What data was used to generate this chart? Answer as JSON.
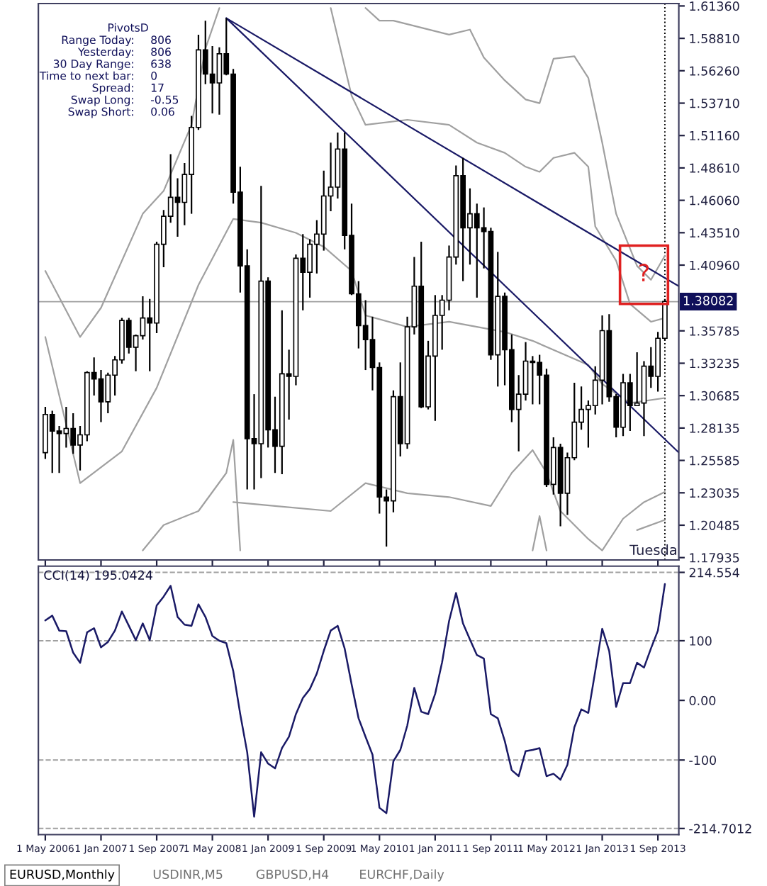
{
  "chart_data": [
    {
      "type": "candlestick",
      "color": "#000000",
      "x": [
        "2006-05",
        "2006-06",
        "2006-07",
        "2006-08",
        "2006-09",
        "2006-10",
        "2006-11",
        "2006-12",
        "2007-01",
        "2007-02",
        "2007-03",
        "2007-04",
        "2007-05",
        "2007-06",
        "2007-07",
        "2007-08",
        "2007-09",
        "2007-10",
        "2007-11",
        "2007-12",
        "2008-01",
        "2008-02",
        "2008-03",
        "2008-04",
        "2008-05",
        "2008-06",
        "2008-07",
        "2008-08",
        "2008-09",
        "2008-10",
        "2008-11",
        "2008-12",
        "2009-01",
        "2009-02",
        "2009-03",
        "2009-04",
        "2009-05",
        "2009-06",
        "2009-07",
        "2009-08",
        "2009-09",
        "2009-10",
        "2009-11",
        "2009-12",
        "2010-01",
        "2010-02",
        "2010-03",
        "2010-04",
        "2010-05",
        "2010-06",
        "2010-07",
        "2010-08",
        "2010-09",
        "2010-10",
        "2010-11",
        "2010-12",
        "2011-01",
        "2011-02",
        "2011-03",
        "2011-04",
        "2011-05",
        "2011-06",
        "2011-07",
        "2011-08",
        "2011-09",
        "2011-10",
        "2011-11",
        "2011-12",
        "2012-01",
        "2012-02",
        "2012-03",
        "2012-04",
        "2012-05",
        "2012-06",
        "2012-07",
        "2012-08",
        "2012-09",
        "2012-10",
        "2012-11",
        "2012-12",
        "2013-01",
        "2013-02",
        "2013-03",
        "2013-04",
        "2013-05",
        "2013-06",
        "2013-07",
        "2013-08",
        "2013-09",
        "2013-10"
      ],
      "ohlc": [
        [
          1.262,
          1.298,
          1.257,
          1.292
        ],
        [
          1.292,
          1.295,
          1.246,
          1.279
        ],
        [
          1.279,
          1.283,
          1.246,
          1.277
        ],
        [
          1.277,
          1.298,
          1.266,
          1.281
        ],
        [
          1.281,
          1.293,
          1.261,
          1.268
        ],
        [
          1.268,
          1.283,
          1.248,
          1.276
        ],
        [
          1.276,
          1.326,
          1.271,
          1.325
        ],
        [
          1.325,
          1.337,
          1.307,
          1.32
        ],
        [
          1.32,
          1.327,
          1.286,
          1.302
        ],
        [
          1.302,
          1.325,
          1.293,
          1.323
        ],
        [
          1.323,
          1.338,
          1.307,
          1.335
        ],
        [
          1.335,
          1.368,
          1.332,
          1.366
        ],
        [
          1.366,
          1.368,
          1.34,
          1.345
        ],
        [
          1.345,
          1.355,
          1.326,
          1.354
        ],
        [
          1.354,
          1.385,
          1.351,
          1.368
        ],
        [
          1.368,
          1.383,
          1.326,
          1.364
        ],
        [
          1.364,
          1.428,
          1.356,
          1.426
        ],
        [
          1.426,
          1.453,
          1.408,
          1.448
        ],
        [
          1.448,
          1.497,
          1.443,
          1.463
        ],
        [
          1.463,
          1.478,
          1.432,
          1.459
        ],
        [
          1.459,
          1.49,
          1.441,
          1.481
        ],
        [
          1.481,
          1.527,
          1.45,
          1.518
        ],
        [
          1.518,
          1.591,
          1.516,
          1.579
        ],
        [
          1.579,
          1.602,
          1.552,
          1.56
        ],
        [
          1.56,
          1.582,
          1.529,
          1.553
        ],
        [
          1.553,
          1.581,
          1.528,
          1.576
        ],
        [
          1.576,
          1.604,
          1.559,
          1.56
        ],
        [
          1.56,
          1.564,
          1.458,
          1.467
        ],
        [
          1.467,
          1.487,
          1.388,
          1.409
        ],
        [
          1.409,
          1.422,
          1.233,
          1.273
        ],
        [
          1.273,
          1.308,
          1.233,
          1.269
        ],
        [
          1.269,
          1.472,
          1.242,
          1.397
        ],
        [
          1.397,
          1.4,
          1.266,
          1.28
        ],
        [
          1.28,
          1.306,
          1.246,
          1.267
        ],
        [
          1.267,
          1.374,
          1.245,
          1.324
        ],
        [
          1.324,
          1.343,
          1.288,
          1.322
        ],
        [
          1.322,
          1.418,
          1.315,
          1.415
        ],
        [
          1.415,
          1.434,
          1.374,
          1.404
        ],
        [
          1.404,
          1.43,
          1.384,
          1.426
        ],
        [
          1.426,
          1.445,
          1.403,
          1.434
        ],
        [
          1.434,
          1.484,
          1.421,
          1.464
        ],
        [
          1.464,
          1.506,
          1.452,
          1.471
        ],
        [
          1.471,
          1.514,
          1.462,
          1.501
        ],
        [
          1.501,
          1.514,
          1.422,
          1.433
        ],
        [
          1.433,
          1.458,
          1.386,
          1.387
        ],
        [
          1.387,
          1.397,
          1.344,
          1.362
        ],
        [
          1.362,
          1.382,
          1.327,
          1.351
        ],
        [
          1.351,
          1.369,
          1.311,
          1.329
        ],
        [
          1.329,
          1.333,
          1.214,
          1.227
        ],
        [
          1.227,
          1.233,
          1.188,
          1.224
        ],
        [
          1.224,
          1.311,
          1.215,
          1.306
        ],
        [
          1.306,
          1.333,
          1.259,
          1.269
        ],
        [
          1.269,
          1.369,
          1.265,
          1.361
        ],
        [
          1.361,
          1.416,
          1.355,
          1.393
        ],
        [
          1.393,
          1.428,
          1.297,
          1.298
        ],
        [
          1.298,
          1.35,
          1.296,
          1.338
        ],
        [
          1.338,
          1.386,
          1.287,
          1.37
        ],
        [
          1.37,
          1.386,
          1.343,
          1.382
        ],
        [
          1.382,
          1.425,
          1.374,
          1.416
        ],
        [
          1.416,
          1.488,
          1.41,
          1.48
        ],
        [
          1.48,
          1.494,
          1.397,
          1.439
        ],
        [
          1.439,
          1.47,
          1.41,
          1.45
        ],
        [
          1.45,
          1.458,
          1.384,
          1.439
        ],
        [
          1.439,
          1.455,
          1.407,
          1.436
        ],
        [
          1.436,
          1.439,
          1.335,
          1.339
        ],
        [
          1.339,
          1.42,
          1.314,
          1.385
        ],
        [
          1.385,
          1.388,
          1.315,
          1.343
        ],
        [
          1.343,
          1.355,
          1.286,
          1.296
        ],
        [
          1.296,
          1.323,
          1.263,
          1.308
        ],
        [
          1.308,
          1.349,
          1.303,
          1.334
        ],
        [
          1.334,
          1.338,
          1.3,
          1.333
        ],
        [
          1.333,
          1.339,
          1.3,
          1.323
        ],
        [
          1.323,
          1.328,
          1.235,
          1.237
        ],
        [
          1.237,
          1.274,
          1.229,
          1.266
        ],
        [
          1.266,
          1.269,
          1.204,
          1.23
        ],
        [
          1.23,
          1.262,
          1.213,
          1.258
        ],
        [
          1.258,
          1.317,
          1.256,
          1.286
        ],
        [
          1.286,
          1.314,
          1.28,
          1.296
        ],
        [
          1.296,
          1.303,
          1.266,
          1.299
        ],
        [
          1.299,
          1.33,
          1.292,
          1.319
        ],
        [
          1.319,
          1.37,
          1.3,
          1.358
        ],
        [
          1.358,
          1.371,
          1.302,
          1.306
        ],
        [
          1.306,
          1.308,
          1.274,
          1.282
        ],
        [
          1.282,
          1.324,
          1.275,
          1.317
        ],
        [
          1.317,
          1.324,
          1.279,
          1.299
        ],
        [
          1.299,
          1.341,
          1.299,
          1.301
        ],
        [
          1.301,
          1.334,
          1.275,
          1.33
        ],
        [
          1.33,
          1.345,
          1.313,
          1.322
        ],
        [
          1.322,
          1.357,
          1.31,
          1.352
        ],
        [
          1.352,
          1.383,
          1.35,
          1.381
        ]
      ],
      "series": [
        {
          "type": "line",
          "color": "#a0a0a0",
          "x": [
            "2006-05",
            "2006-10",
            "2007-01",
            "2007-07",
            "2007-10",
            "2008-02",
            "2008-04",
            "2008-06",
            "2008-07",
            "2009-10",
            "2010-01",
            "2010-03",
            "2010-09",
            "2011-03",
            "2011-07",
            "2011-11",
            "2012-02",
            "2012-04",
            "2012-06",
            "2012-09",
            "2012-11",
            "2012-12",
            "2013-03",
            "2013-05",
            "2013-08",
            "2013-10"
          ],
          "values": [
            1.405,
            1.353,
            1.376,
            1.45,
            1.468,
            1.52,
            1.58,
            1.612,
            null,
            1.612,
            1.543,
            1.52,
            1.524,
            1.52,
            1.506,
            1.498,
            1.487,
            1.483,
            1.494,
            1.498,
            1.487,
            1.44,
            1.413,
            1.379,
            1.365,
            1.368
          ]
        },
        {
          "type": "line",
          "color": "#a0a0a0",
          "x": [
            "2010-03",
            "2010-05",
            "2010-07",
            "2011-03",
            "2011-06",
            "2011-08",
            "2011-11",
            "2012-02",
            "2012-04",
            "2012-06",
            "2012-09",
            "2012-11",
            "2013-01",
            "2013-03",
            "2013-06",
            "2013-08",
            "2013-10"
          ],
          "values": [
            1.612,
            1.602,
            1.602,
            1.591,
            1.595,
            1.573,
            1.555,
            1.54,
            1.537,
            1.572,
            1.574,
            1.557,
            1.506,
            1.45,
            1.409,
            1.398,
            1.417
          ]
        },
        {
          "type": "line",
          "color": "#a0a0a0",
          "x": [
            "2006-05",
            "2006-10",
            "2007-04",
            "2007-09",
            "2008-03",
            "2008-08",
            "2008-12",
            "2009-05",
            "2009-09",
            "2010-01",
            "2010-03",
            "2010-09",
            "2011-03",
            "2011-07",
            "2011-11",
            "2012-03",
            "2012-11",
            "2013-01",
            "2013-05",
            "2013-10"
          ],
          "values": [
            1.353,
            1.238,
            1.263,
            1.313,
            1.394,
            1.446,
            1.443,
            1.435,
            1.424,
            1.405,
            1.37,
            1.361,
            1.365,
            1.361,
            1.357,
            1.35,
            1.331,
            1.316,
            1.301,
            1.305
          ]
        },
        {
          "type": "line",
          "color": "#a0a0a0",
          "x": [
            "2008-08",
            "2009-02",
            "2009-10",
            "2010-03",
            "2010-09",
            "2011-03",
            "2011-09",
            "2011-12",
            "2012-03",
            "2012-05",
            "2012-07",
            "2012-11",
            "2013-01",
            "2013-04",
            "2013-07",
            "2013-10"
          ],
          "values": [
            1.223,
            1.22,
            1.216,
            1.238,
            1.23,
            1.227,
            1.22,
            1.246,
            1.264,
            1.246,
            1.216,
            1.194,
            1.185,
            1.21,
            1.223,
            1.231
          ]
        },
        {
          "type": "line",
          "color": "#a0a0a0",
          "x": [
            "2007-07",
            "2007-10",
            "2008-03",
            "2008-07",
            "2008-08",
            "2008-09",
            "2008-10",
            "2012-03",
            "2012-04",
            "2012-05",
            "2012-06",
            "2013-06",
            "2013-10"
          ],
          "values": [
            1.185,
            1.205,
            1.216,
            1.246,
            1.272,
            1.185,
            null,
            1.185,
            1.212,
            1.185,
            null,
            1.201,
            1.209
          ]
        },
        {
          "type": "line",
          "color": "#1a1a66",
          "x": [
            "2008-07",
            "2013-12"
          ],
          "values": [
            1.604,
            1.393
          ]
        },
        {
          "type": "line",
          "color": "#1a1a66",
          "x": [
            "2008-07",
            "2013-12"
          ],
          "values": [
            1.604,
            1.262
          ]
        }
      ],
      "xlim": [
        "2006-04",
        "2013-12"
      ],
      "ylim": [
        1.1775,
        1.6155
      ],
      "xticks": [
        {
          "value": "2006-05",
          "label": null
        },
        {
          "value": "2007-01",
          "label": null
        },
        {
          "value": "2007-09",
          "label": null
        },
        {
          "value": "2008-05",
          "label": null
        },
        {
          "value": "2009-01",
          "label": null
        },
        {
          "value": "2009-09",
          "label": null
        },
        {
          "value": "2010-05",
          "label": null
        },
        {
          "value": "2011-01",
          "label": null
        },
        {
          "value": "2011-09",
          "label": null
        },
        {
          "value": "2012-05",
          "label": null
        },
        {
          "value": "2013-01",
          "label": null
        },
        {
          "value": "2013-09",
          "label": null
        }
      ],
      "yticks": [
        {
          "value": 1.6136,
          "label": "1.61360"
        },
        {
          "value": 1.5881,
          "label": "1.58810"
        },
        {
          "value": 1.5626,
          "label": "1.56260"
        },
        {
          "value": 1.5371,
          "label": "1.53710"
        },
        {
          "value": 1.5116,
          "label": "1.51160"
        },
        {
          "value": 1.4861,
          "label": "1.48610"
        },
        {
          "value": 1.4606,
          "label": "1.46060"
        },
        {
          "value": 1.4351,
          "label": "1.43510"
        },
        {
          "value": 1.4096,
          "label": "1.40960"
        },
        {
          "value": 1.35785,
          "label": "1.35785"
        },
        {
          "value": 1.33235,
          "label": "1.33235"
        },
        {
          "value": 1.30685,
          "label": "1.30685"
        },
        {
          "value": 1.28135,
          "label": "1.28135"
        },
        {
          "value": 1.25585,
          "label": "1.25585"
        },
        {
          "value": 1.23035,
          "label": "1.23035"
        },
        {
          "value": 1.20485,
          "label": "1.20485"
        },
        {
          "value": 1.17935,
          "label": "1.17935"
        }
      ],
      "tick_labels": "y",
      "ref_lines": [
        {
          "axis": "y",
          "value": 1.38082,
          "label": "1.38082",
          "color": "#a0a0a0",
          "line_style": "solid"
        },
        {
          "axis": "x",
          "value": "2013-10",
          "color": "#000000",
          "line_style": "dotted"
        }
      ],
      "annotations": [
        "PivotsD",
        "Range Today:",
        "806",
        "Yesterday:",
        "806",
        "30 Day Range:",
        "638",
        "Time to next bar:",
        "0",
        "Spread:",
        "17",
        "Swap Long:",
        "-0.55",
        "Swap Short:",
        "0.06",
        {
          "text": "?",
          "x": "2013-07",
          "y": 1.402
        },
        "Tuesda"
      ]
    },
    {
      "type": "line",
      "title": "CCI(14) 195.0424",
      "x": [
        "2006-05",
        "2006-06",
        "2006-07",
        "2006-08",
        "2006-09",
        "2006-10",
        "2006-11",
        "2006-12",
        "2007-01",
        "2007-02",
        "2007-03",
        "2007-04",
        "2007-05",
        "2007-06",
        "2007-07",
        "2007-08",
        "2007-09",
        "2007-10",
        "2007-11",
        "2007-12",
        "2008-01",
        "2008-02",
        "2008-03",
        "2008-04",
        "2008-05",
        "2008-06",
        "2008-07",
        "2008-08",
        "2008-09",
        "2008-10",
        "2008-11",
        "2008-12",
        "2009-01",
        "2009-02",
        "2009-03",
        "2009-04",
        "2009-05",
        "2009-06",
        "2009-07",
        "2009-08",
        "2009-09",
        "2009-10",
        "2009-11",
        "2009-12",
        "2010-01",
        "2010-02",
        "2010-03",
        "2010-04",
        "2010-05",
        "2010-06",
        "2010-07",
        "2010-08",
        "2010-09",
        "2010-10",
        "2010-11",
        "2010-12",
        "2011-01",
        "2011-02",
        "2011-03",
        "2011-04",
        "2011-05",
        "2011-06",
        "2011-07",
        "2011-08",
        "2011-09",
        "2011-10",
        "2011-11",
        "2011-12",
        "2012-01",
        "2012-02",
        "2012-03",
        "2012-04",
        "2012-05",
        "2012-06",
        "2012-07",
        "2012-08",
        "2012-09",
        "2012-10",
        "2012-11",
        "2012-12",
        "2013-01",
        "2013-02",
        "2013-03",
        "2013-04",
        "2013-05",
        "2013-06",
        "2013-07",
        "2013-08",
        "2013-09",
        "2013-10"
      ],
      "series": [
        {
          "color": "#1a1a66",
          "values": [
            134,
            142,
            117,
            116,
            80,
            63,
            114,
            121,
            89,
            98,
            117,
            149,
            125,
            101,
            129,
            101,
            159,
            174,
            192,
            140,
            127,
            125,
            161,
            140,
            108,
            100,
            96,
            49,
            -23,
            -87,
            -195,
            -87,
            -106,
            -114,
            -80,
            -61,
            -23,
            4,
            19,
            45,
            83,
            117,
            125,
            87,
            27,
            -30,
            -61,
            -91,
            -180,
            -189,
            -102,
            -83,
            -42,
            21,
            -19,
            -23,
            11,
            64,
            133,
            180,
            129,
            102,
            76,
            70,
            -23,
            -30,
            -68,
            -117,
            -127,
            -85,
            -83,
            -80,
            -127,
            -123,
            -133,
            -108,
            -45,
            -15,
            -21,
            49,
            120,
            83,
            -11,
            29,
            29,
            63,
            55,
            87,
            117,
            195
          ]
        }
      ],
      "xlim": [
        "2006-04",
        "2013-12"
      ],
      "ylim": [
        -225,
        225
      ],
      "xticks": [
        {
          "value": "2006-05",
          "label": "1 May 2006"
        },
        {
          "value": "2007-01",
          "label": "1 Jan 2007"
        },
        {
          "value": "2007-09",
          "label": "1 Sep 2007"
        },
        {
          "value": "2008-05",
          "label": "1 May 2008"
        },
        {
          "value": "2009-01",
          "label": "1 Jan 2009"
        },
        {
          "value": "2009-09",
          "label": "1 Sep 2009"
        },
        {
          "value": "2010-05",
          "label": "1 May 2010"
        },
        {
          "value": "2011-01",
          "label": "1 Jan 2011"
        },
        {
          "value": "2011-09",
          "label": "1 Sep 2011"
        },
        {
          "value": "2012-05",
          "label": "1 May 2012"
        },
        {
          "value": "2013-01",
          "label": "1 Jan 2013"
        },
        {
          "value": "2013-09",
          "label": "1 Sep 2013"
        }
      ],
      "yticks": [
        214.554,
        100,
        {
          "value": 0,
          "label": "0.00"
        },
        -100,
        -214.7012
      ],
      "ref_lines": [
        {
          "axis": "y",
          "value": 214.554,
          "color": "#a0a0a0",
          "line_style": "dashed"
        },
        {
          "axis": "y",
          "value": 100,
          "color": "#a0a0a0",
          "line_style": "dashed"
        },
        {
          "axis": "y",
          "value": -100,
          "color": "#a0a0a0",
          "line_style": "dashed"
        },
        {
          "axis": "y",
          "value": -214.7012,
          "color": "#a0a0a0",
          "line_style": "dashed"
        }
      ],
      "annotations": [
        "EURUSD,Monthly",
        "USDINR,M5",
        "GBPUSD,H4",
        "EURCHF,Daily"
      ]
    }
  ]
}
